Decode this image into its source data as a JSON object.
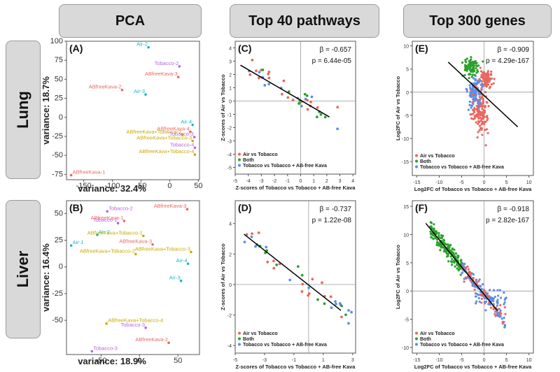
{
  "headers": {
    "pca": "PCA",
    "pathways": "Top 40 pathways",
    "genes": "Top 300 genes",
    "lung": "Lung",
    "liver": "Liver"
  },
  "colors": {
    "air": "#e8685f",
    "both": "#2ca02c",
    "tobacco": "#5b8ee6",
    "abkava": "#c9a900",
    "purple": "#b765e0",
    "cyan": "#19b5c4"
  },
  "chart_data": [
    {
      "id": "A",
      "type": "scatter",
      "panel_label": "(A)",
      "xlabel": "variance: 32.4%",
      "ylabel": "variance: 18.7%",
      "xlim": [
        -180,
        52
      ],
      "ylim": [
        -82,
        100
      ],
      "xticks": [
        -150,
        -100,
        -50,
        0,
        50
      ],
      "yticks": [
        -75,
        -50,
        -25,
        0,
        25,
        50,
        75,
        100
      ],
      "points": [
        {
          "label": "Air-2",
          "x": -37,
          "y": 92,
          "group": "cyan"
        },
        {
          "label": "Tobacco-2",
          "x": 17,
          "y": 67,
          "group": "purple"
        },
        {
          "label": "ABfreeKava-3",
          "x": 15,
          "y": 53,
          "group": "air"
        },
        {
          "label": "ABfreeKava-2",
          "x": -83,
          "y": 36,
          "group": "air"
        },
        {
          "label": "Air-3",
          "x": -42,
          "y": 30,
          "group": "cyan"
        },
        {
          "label": "Air-4",
          "x": 40,
          "y": -10,
          "group": "cyan"
        },
        {
          "label": "ABfreeKava-4",
          "x": 36,
          "y": -19,
          "group": "air"
        },
        {
          "label": "ABfreeKava+Tobacco-2",
          "x": 22,
          "y": -23,
          "group": "abkava"
        },
        {
          "label": "Tobacco-3",
          "x": 43,
          "y": -26,
          "group": "purple"
        },
        {
          "label": "ABfreeKava+Tobacco-3",
          "x": 40,
          "y": -31,
          "group": "abkava"
        },
        {
          "label": "Tobacco-4",
          "x": 44,
          "y": -40,
          "group": "purple"
        },
        {
          "label": "ABfreeKava+Tobacco-4",
          "x": 44,
          "y": -49,
          "group": "abkava"
        },
        {
          "label": "ABfreeKava-1",
          "x": -172,
          "y": -76,
          "group": "air"
        }
      ]
    },
    {
      "id": "B",
      "type": "scatter",
      "panel_label": "(B)",
      "xlabel": "variance: 18.9%",
      "ylabel": "variance: 16.4%",
      "xlim": [
        -95,
        78
      ],
      "ylim": [
        -82,
        62
      ],
      "xticks": [
        -50,
        0,
        50
      ],
      "yticks": [
        -50,
        -25,
        0,
        25,
        50
      ],
      "points": [
        {
          "label": "ABfreeKava-3",
          "x": 62,
          "y": 54,
          "group": "air"
        },
        {
          "label": "Tobacco-2",
          "x": -42,
          "y": 52,
          "group": "purple"
        },
        {
          "label": "Tobacco-1",
          "x": -28,
          "y": 41,
          "group": "purple"
        },
        {
          "label": "ABfreeKava-1",
          "x": -20,
          "y": 43,
          "group": "air"
        },
        {
          "label": "Air-2",
          "x": -55,
          "y": 30,
          "group": "cyan"
        },
        {
          "label": "ABfreeKava+Tobacco-1",
          "x": 5,
          "y": 29,
          "group": "abkava"
        },
        {
          "label": "Air-1",
          "x": -89,
          "y": 20,
          "group": "cyan"
        },
        {
          "label": "ABfreeKava-3",
          "x": 17,
          "y": 21,
          "group": "air"
        },
        {
          "label": "ABfreeKava+Tobacco-3",
          "x": 67,
          "y": 14,
          "group": "abkava"
        },
        {
          "label": "ABfreeKava+Tobacco-2",
          "x": -5,
          "y": 12,
          "group": "abkava"
        },
        {
          "label": "Air-4",
          "x": 63,
          "y": 3,
          "group": "cyan"
        },
        {
          "label": "Air-3",
          "x": 54,
          "y": -13,
          "group": "cyan"
        },
        {
          "label": "ABfreeKava+Tobacco-4",
          "x": -43,
          "y": -53,
          "group": "abkava"
        },
        {
          "label": "Tobacco-3",
          "x": 8,
          "y": -57,
          "group": "purple"
        },
        {
          "label": "ABfreeKava-2",
          "x": 38,
          "y": -71,
          "group": "air"
        },
        {
          "label": "Tobacco-3",
          "x": -62,
          "y": -79,
          "group": "purple"
        }
      ]
    },
    {
      "id": "C",
      "type": "scatter",
      "panel_label": "(C)",
      "xlabel": "Z-scores of Tobacco vs Tobacco + AB-free Kava",
      "ylabel": "Z-scores of Air vs Tobacco",
      "xlim": [
        -5,
        4.2
      ],
      "ylim": [
        -5.5,
        4.5
      ],
      "xticks": [
        -5,
        -4,
        -3,
        -2,
        -1,
        0,
        1,
        2,
        3,
        4
      ],
      "yticks": [
        -5,
        -4,
        -3,
        -2,
        -1,
        0,
        1,
        2,
        3,
        4
      ],
      "beta": "β = -0.657",
      "pval": "p = 6.44e-05",
      "legend": [
        "Air vs Tobacco",
        "Both",
        "Tobacco vs Tobacco + AB-free Kava"
      ],
      "fit": {
        "x1": -4.6,
        "y1": 2.7,
        "x2": 2.2,
        "y2": -1.2
      }
    },
    {
      "id": "D",
      "type": "scatter",
      "panel_label": "(D)",
      "xlabel": "Z-scores of Tobacco vs Tobacco + AB-free Kava",
      "ylabel": "Z-scores of Air vs Tobacco",
      "xlim": [
        -5,
        3.2
      ],
      "ylim": [
        -4.5,
        5.5
      ],
      "xticks": [
        -5,
        -3,
        -1,
        1,
        3
      ],
      "yticks": [
        -4,
        -2,
        0,
        2,
        4
      ],
      "beta": "β = -0.737",
      "pval": "p = 1.22e-08",
      "legend": [
        "Air vs Tobacco",
        "Both",
        "Tobacco vs Tobacco + AB-free Kava"
      ],
      "fit": {
        "x1": -4.4,
        "y1": 3.3,
        "x2": 2.2,
        "y2": -1.7
      }
    },
    {
      "id": "E",
      "type": "scatter",
      "panel_label": "(E)",
      "xlabel": "Log2FC of Tobacco vs Tobacco + AB-free Kava",
      "ylabel": "Log2FC of Air vs Tobacco",
      "xlim": [
        -16,
        11
      ],
      "ylim": [
        -18,
        11
      ],
      "xticks": [
        -15,
        -10,
        -5,
        0,
        5,
        10
      ],
      "yticks": [
        -15,
        -10,
        -5,
        0,
        5,
        10
      ],
      "beta": "β = -0.909",
      "pval": "p = 4.29e-167",
      "legend": [
        "Air vs Tobacco",
        "Both",
        "Tobacco vs Tobacco + AB-free Kava"
      ],
      "fit": {
        "x1": -8,
        "y1": 6.5,
        "x2": 7.5,
        "y2": -7.5
      }
    },
    {
      "id": "F",
      "type": "scatter",
      "panel_label": "(F)",
      "xlabel": "Log2FC of Tobacco vs Tobacco + AB-free Kava",
      "ylabel": "Log2FC of Air vs Tobacco",
      "xlim": [
        -16,
        11
      ],
      "ylim": [
        -11,
        16
      ],
      "xticks": [
        -15,
        -10,
        -5,
        0,
        5,
        10
      ],
      "yticks": [
        -10,
        -5,
        0,
        5,
        10,
        15
      ],
      "beta": "β = -0.918",
      "pval": "p = 2.82e-167",
      "legend": [
        "Air vs Tobacco",
        "Both",
        "Tobacco vs Tobacco + AB-free Kava"
      ],
      "fit": {
        "x1": -13,
        "y1": 12,
        "x2": 3,
        "y2": -3.5
      }
    }
  ]
}
